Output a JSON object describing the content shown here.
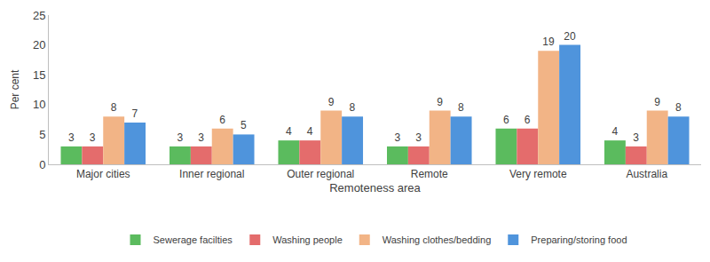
{
  "chart_data": {
    "type": "bar",
    "x_label": "Remoteness area",
    "y_label": "Per cent",
    "categories": [
      "Major cities",
      "Inner regional",
      "Outer regional",
      "Remote",
      "Very remote",
      "Australia"
    ],
    "series": [
      {
        "name": "Sewerage facilties",
        "color": "#5BBB5E",
        "values": [
          3,
          3,
          4,
          3,
          6,
          4
        ]
      },
      {
        "name": "Washing people",
        "color": "#E46C6C",
        "values": [
          3,
          3,
          4,
          3,
          6,
          3
        ]
      },
      {
        "name": "Washing clothes/bedding",
        "color": "#F2B486",
        "values": [
          8,
          6,
          9,
          9,
          19,
          9
        ]
      },
      {
        "name": "Preparing/storing food",
        "color": "#4F94DC",
        "values": [
          7,
          5,
          8,
          8,
          20,
          8
        ]
      }
    ],
    "ylim": [
      0,
      25
    ],
    "yticks": [
      0,
      5,
      10,
      15,
      20,
      25
    ],
    "grid": false,
    "legend": "bottom",
    "data_labels": true
  }
}
